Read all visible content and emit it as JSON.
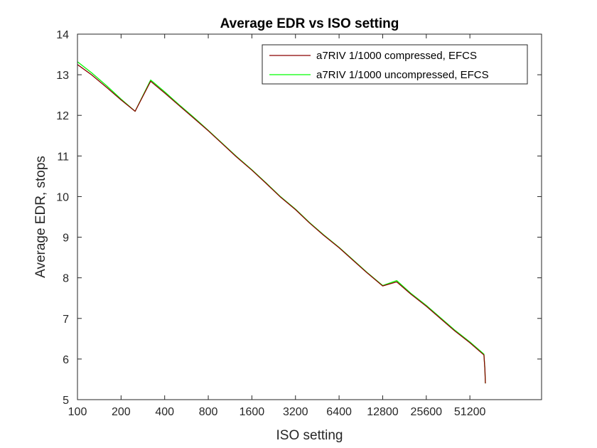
{
  "chart_data": {
    "type": "line",
    "title": "Average EDR vs ISO setting",
    "xlabel": "ISO setting",
    "ylabel": "Average EDR, stops",
    "x_scale": "log2",
    "xlim": [
      100,
      160000
    ],
    "ylim": [
      5,
      14
    ],
    "x_ticks": [
      100,
      200,
      400,
      800,
      1600,
      3200,
      6400,
      12800,
      25600,
      51200
    ],
    "x_tick_labels": [
      "100",
      "200",
      "400",
      "800",
      "1600",
      "3200",
      "6400",
      "12800",
      "25600",
      "51200"
    ],
    "y_ticks": [
      5,
      6,
      7,
      8,
      9,
      10,
      11,
      12,
      13,
      14
    ],
    "y_tick_labels": [
      "5",
      "6",
      "7",
      "8",
      "9",
      "10",
      "11",
      "12",
      "13",
      "14"
    ],
    "grid": false,
    "legend_position": "top-right",
    "series": [
      {
        "name": "a7RIV 1/1000 compressed, EFCS",
        "color": "#8B0000",
        "points": [
          [
            100,
            13.25
          ],
          [
            125,
            13.0
          ],
          [
            160,
            12.68
          ],
          [
            200,
            12.38
          ],
          [
            250,
            12.1
          ],
          [
            320,
            12.84
          ],
          [
            400,
            12.55
          ],
          [
            500,
            12.25
          ],
          [
            640,
            11.92
          ],
          [
            800,
            11.62
          ],
          [
            1000,
            11.3
          ],
          [
            1250,
            10.98
          ],
          [
            1600,
            10.65
          ],
          [
            2000,
            10.33
          ],
          [
            2500,
            10.0
          ],
          [
            3200,
            9.68
          ],
          [
            4000,
            9.35
          ],
          [
            5000,
            9.05
          ],
          [
            6400,
            8.74
          ],
          [
            8000,
            8.43
          ],
          [
            10000,
            8.12
          ],
          [
            12800,
            7.8
          ],
          [
            16000,
            7.9
          ],
          [
            20000,
            7.6
          ],
          [
            25600,
            7.3
          ],
          [
            32000,
            7.0
          ],
          [
            40000,
            6.7
          ],
          [
            51200,
            6.4
          ],
          [
            64000,
            6.1
          ],
          [
            65000,
            5.75
          ],
          [
            65500,
            5.4
          ]
        ]
      },
      {
        "name": "a7RIV 1/1000 uncompressed, EFCS",
        "color": "#00FF00",
        "points": [
          [
            100,
            13.32
          ],
          [
            125,
            13.05
          ],
          [
            160,
            12.72
          ],
          [
            200,
            12.4
          ],
          [
            250,
            12.1
          ],
          [
            320,
            12.87
          ],
          [
            400,
            12.58
          ],
          [
            500,
            12.27
          ],
          [
            640,
            11.94
          ],
          [
            800,
            11.63
          ],
          [
            1000,
            11.31
          ],
          [
            1250,
            10.99
          ],
          [
            1600,
            10.66
          ],
          [
            2000,
            10.34
          ],
          [
            2500,
            10.01
          ],
          [
            3200,
            9.69
          ],
          [
            4000,
            9.36
          ],
          [
            5000,
            9.06
          ],
          [
            6400,
            8.75
          ],
          [
            8000,
            8.44
          ],
          [
            10000,
            8.13
          ],
          [
            12800,
            7.81
          ],
          [
            16000,
            7.93
          ],
          [
            20000,
            7.62
          ],
          [
            25600,
            7.32
          ],
          [
            32000,
            7.02
          ],
          [
            40000,
            6.72
          ],
          [
            51200,
            6.42
          ],
          [
            64000,
            6.12
          ],
          [
            65000,
            5.75
          ],
          [
            65500,
            5.4
          ]
        ]
      }
    ]
  }
}
